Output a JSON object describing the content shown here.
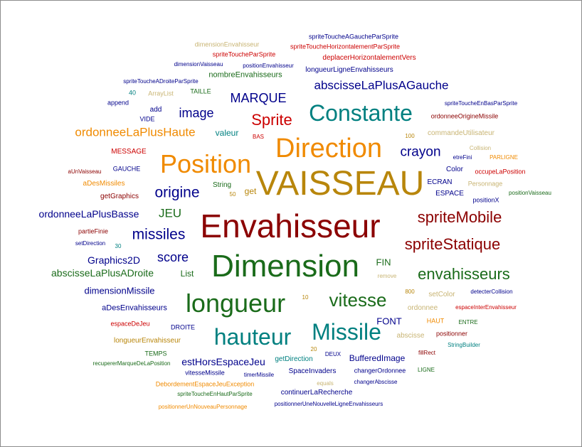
{
  "colors": {
    "dark_red": "#8b0000",
    "red": "#cc0000",
    "blue": "#00008b",
    "green": "#1a6b1a",
    "teal": "#008080",
    "orange": "#f08a00",
    "gold": "#b8860b",
    "light_gold": "#c8b473"
  },
  "words": [
    "VAISSEAU",
    "Envahisseur",
    "Dimension",
    "Direction",
    "Position",
    "Constante",
    "longueur",
    "hauteur",
    "Missile",
    "vitesse",
    "spriteMobile",
    "spriteStatique",
    "envahisseurs",
    "Sprite",
    "abscisseLaPlusAGauche",
    "MARQUE",
    "image",
    "origine",
    "ordonneeLaPlusHaute",
    "crayon",
    "missiles",
    "score",
    "JEU",
    "ordonneeLaPlusBasse",
    "abscisseLaPlusADroite",
    "Graphics2D",
    "dimensionMissile",
    "estHorsEspaceJeu",
    "aDesEnvahisseurs",
    "FIN",
    "FONT",
    "BufferedImage",
    "valeur",
    "get",
    "List",
    "String",
    "nombreEnvahisseurs",
    "longueurLigneEnvahisseurs",
    "spriteToucheAGaucheParSprite",
    "spriteToucheHorizontalementParSprite",
    "deplacerHorizontalementVers",
    "dimensionEnvahisseur",
    "spriteToucheParSprite",
    "dimensionVaisseau",
    "positionEnvahisseur",
    "spriteToucheADroiteParSprite",
    "TAILLE",
    "ArrayList",
    "40",
    "append",
    "add",
    "VIDE",
    "BAS",
    "MESSAGE",
    "GAUCHE",
    "aUnVaisseau",
    "aDesMissiles",
    "getGraphics",
    "partieFinie",
    "30",
    "setDirection",
    "spriteToucheEnBasParSprite",
    "ordonneeOrigineMissile",
    "100",
    "commandeUtilisateur",
    "Collision",
    "etreFini",
    "PARLIGNE",
    "Color",
    "occupeLaPosition",
    "ECRAN",
    "Personnage",
    "ESPACE",
    "positionX",
    "positionVaisseau",
    "remove",
    "800",
    "setColor",
    "detecterCollision",
    "10",
    "ordonnee",
    "espaceInterEnvahisseur",
    "HAUT",
    "ENTRE",
    "abscisse",
    "positionner",
    "StringBuilder",
    "espaceDeJeu",
    "DROITE",
    "longueurEnvahisseur",
    "TEMPS",
    "20",
    "getDirection",
    "DEUX",
    "fillRect",
    "recupererMarqueDeLaPosition",
    "vitesseMissile",
    "timerMissile",
    "SpaceInvaders",
    "changerOrdonnee",
    "LIGNE",
    "DebordementEspaceJeuException",
    "equals",
    "changerAbscisse",
    "spriteToucheEnHautParSprite",
    "continuerLaRecherche",
    "positionnerUnNouveauPersonnage",
    "positionnerUneNouvelleLigneEnvahisseurs",
    "50"
  ]
}
